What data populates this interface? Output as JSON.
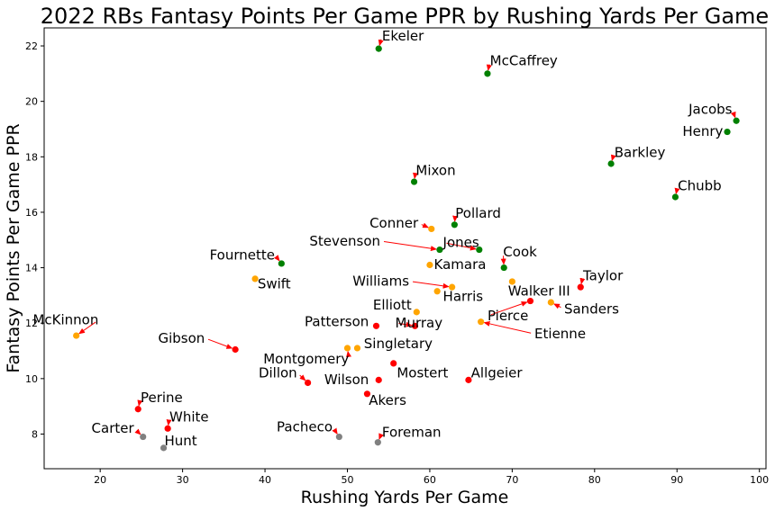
{
  "chart_data": {
    "type": "scatter",
    "title": "2022 RBs Fantasy Points Per Game PPR by Rushing Yards Per Game",
    "xlabel": "Rushing Yards Per Game",
    "ylabel": "Fantasy Points Per Game PPR",
    "xlim": [
      13.2,
      100.8
    ],
    "ylim": [
      6.75,
      22.65
    ],
    "xticks": [
      20,
      30,
      40,
      50,
      60,
      70,
      80,
      90,
      100
    ],
    "yticks": [
      8,
      10,
      12,
      14,
      16,
      18,
      20,
      22
    ],
    "grid": false,
    "colors": {
      "green": "#008000",
      "orange": "#ffa500",
      "red": "#ff0000",
      "gray": "#808080",
      "arrow": "#ff0000"
    },
    "points": [
      {
        "name": "Ekeler",
        "x": 53.8,
        "y": 21.9,
        "color": "green",
        "lx": 54.2,
        "ly": 22.2,
        "anchor": "start"
      },
      {
        "name": "McCaffrey",
        "x": 67.0,
        "y": 21.0,
        "color": "green",
        "lx": 67.3,
        "ly": 21.3,
        "anchor": "start"
      },
      {
        "name": "Jacobs",
        "x": 97.2,
        "y": 19.3,
        "color": "green",
        "lx": 96.7,
        "ly": 19.55,
        "anchor": "end"
      },
      {
        "name": "Henry",
        "x": 96.1,
        "y": 18.9,
        "color": "green",
        "lx": 95.6,
        "ly": 18.75,
        "anchor": "end"
      },
      {
        "name": "Barkley",
        "x": 82.0,
        "y": 17.75,
        "color": "green",
        "lx": 82.4,
        "ly": 18.0,
        "anchor": "start"
      },
      {
        "name": "Chubb",
        "x": 89.8,
        "y": 16.55,
        "color": "green",
        "lx": 90.1,
        "ly": 16.8,
        "anchor": "start"
      },
      {
        "name": "Mixon",
        "x": 58.1,
        "y": 17.1,
        "color": "green",
        "lx": 58.3,
        "ly": 17.35,
        "anchor": "start"
      },
      {
        "name": "Pollard",
        "x": 63.0,
        "y": 15.55,
        "color": "green",
        "lx": 63.1,
        "ly": 15.8,
        "anchor": "start"
      },
      {
        "name": "Conner",
        "x": 60.2,
        "y": 15.4,
        "color": "orange",
        "lx": 58.6,
        "ly": 15.45,
        "anchor": "end"
      },
      {
        "name": "Stevenson",
        "x": 61.2,
        "y": 14.65,
        "color": "green",
        "lx": 54.0,
        "ly": 14.8,
        "anchor": "end"
      },
      {
        "name": "Jones",
        "x": 66.0,
        "y": 14.65,
        "color": "green",
        "lx": 61.6,
        "ly": 14.75,
        "anchor": "start"
      },
      {
        "name": "Cook",
        "x": 69.0,
        "y": 14.0,
        "color": "green",
        "lx": 68.9,
        "ly": 14.4,
        "anchor": "start"
      },
      {
        "name": "Kamara",
        "x": 60.0,
        "y": 14.1,
        "color": "orange",
        "lx": 60.5,
        "ly": 13.95,
        "anchor": "start"
      },
      {
        "name": "Fournette",
        "x": 42.0,
        "y": 14.15,
        "color": "green",
        "lx": 41.2,
        "ly": 14.3,
        "anchor": "end"
      },
      {
        "name": "Swift",
        "x": 38.8,
        "y": 13.6,
        "color": "orange",
        "lx": 39.1,
        "ly": 13.25,
        "anchor": "start"
      },
      {
        "name": "Williams",
        "x": 62.7,
        "y": 13.3,
        "color": "orange",
        "lx": 57.5,
        "ly": 13.35,
        "anchor": "end"
      },
      {
        "name": "Harris",
        "x": 60.9,
        "y": 13.15,
        "color": "orange",
        "lx": 61.6,
        "ly": 12.8,
        "anchor": "start"
      },
      {
        "name": "Taylor",
        "x": 78.3,
        "y": 13.3,
        "color": "red",
        "lx": 78.6,
        "ly": 13.55,
        "anchor": "start"
      },
      {
        "name": "Walker III",
        "x": 70.0,
        "y": 13.5,
        "color": "orange",
        "lx": 69.5,
        "ly": 13.0,
        "anchor": "start"
      },
      {
        "name": "Sanders",
        "x": 74.7,
        "y": 12.75,
        "color": "orange",
        "lx": 76.3,
        "ly": 12.35,
        "anchor": "start"
      },
      {
        "name": "Pierce",
        "x": 72.2,
        "y": 12.8,
        "color": "red",
        "lx": 67.0,
        "ly": 12.1,
        "anchor": "start"
      },
      {
        "name": "Elliott",
        "x": 58.4,
        "y": 12.4,
        "color": "orange",
        "lx": 57.8,
        "ly": 12.5,
        "anchor": "end"
      },
      {
        "name": "Patterson",
        "x": 53.5,
        "y": 11.9,
        "color": "red",
        "lx": 52.6,
        "ly": 11.9,
        "anchor": "end"
      },
      {
        "name": "Murray",
        "x": 58.2,
        "y": 11.9,
        "color": "red",
        "lx": 55.8,
        "ly": 11.85,
        "anchor": "start"
      },
      {
        "name": "Etienne",
        "x": 66.2,
        "y": 12.05,
        "color": "orange",
        "lx": 72.7,
        "ly": 11.45,
        "anchor": "start"
      },
      {
        "name": "McKinnon",
        "x": 17.1,
        "y": 11.55,
        "color": "orange",
        "lx": 19.8,
        "ly": 11.95,
        "anchor": "end"
      },
      {
        "name": "Gibson",
        "x": 36.4,
        "y": 11.05,
        "color": "red",
        "lx": 32.7,
        "ly": 11.3,
        "anchor": "end"
      },
      {
        "name": "Montgomery",
        "x": 50.0,
        "y": 11.1,
        "color": "orange",
        "lx": 50.2,
        "ly": 10.55,
        "anchor": "end"
      },
      {
        "name": "Singletary",
        "x": 51.2,
        "y": 11.1,
        "color": "orange",
        "lx": 52.0,
        "ly": 11.1,
        "anchor": "start"
      },
      {
        "name": "Dillon",
        "x": 45.2,
        "y": 9.85,
        "color": "red",
        "lx": 43.9,
        "ly": 10.05,
        "anchor": "end"
      },
      {
        "name": "Mostert",
        "x": 55.6,
        "y": 10.55,
        "color": "red",
        "lx": 56.0,
        "ly": 10.05,
        "anchor": "start"
      },
      {
        "name": "Wilson",
        "x": 53.8,
        "y": 9.95,
        "color": "red",
        "lx": 52.6,
        "ly": 9.8,
        "anchor": "end"
      },
      {
        "name": "Allgeier",
        "x": 64.7,
        "y": 9.95,
        "color": "red",
        "lx": 65.0,
        "ly": 10.05,
        "anchor": "start"
      },
      {
        "name": "Akers",
        "x": 52.4,
        "y": 9.45,
        "color": "red",
        "lx": 52.6,
        "ly": 9.05,
        "anchor": "start"
      },
      {
        "name": "Perine",
        "x": 24.6,
        "y": 8.9,
        "color": "red",
        "lx": 24.9,
        "ly": 9.15,
        "anchor": "start"
      },
      {
        "name": "White",
        "x": 28.2,
        "y": 8.2,
        "color": "red",
        "lx": 28.4,
        "ly": 8.45,
        "anchor": "start"
      },
      {
        "name": "Carter",
        "x": 25.2,
        "y": 7.9,
        "color": "gray",
        "lx": 24.1,
        "ly": 8.05,
        "anchor": "end"
      },
      {
        "name": "Hunt",
        "x": 27.7,
        "y": 7.5,
        "color": "gray",
        "lx": 27.8,
        "ly": 7.6,
        "anchor": "start"
      },
      {
        "name": "Pacheco",
        "x": 49.0,
        "y": 7.9,
        "color": "gray",
        "lx": 48.2,
        "ly": 8.1,
        "anchor": "end"
      },
      {
        "name": "Foreman",
        "x": 53.7,
        "y": 7.7,
        "color": "gray",
        "lx": 54.2,
        "ly": 7.9,
        "anchor": "start"
      }
    ]
  }
}
